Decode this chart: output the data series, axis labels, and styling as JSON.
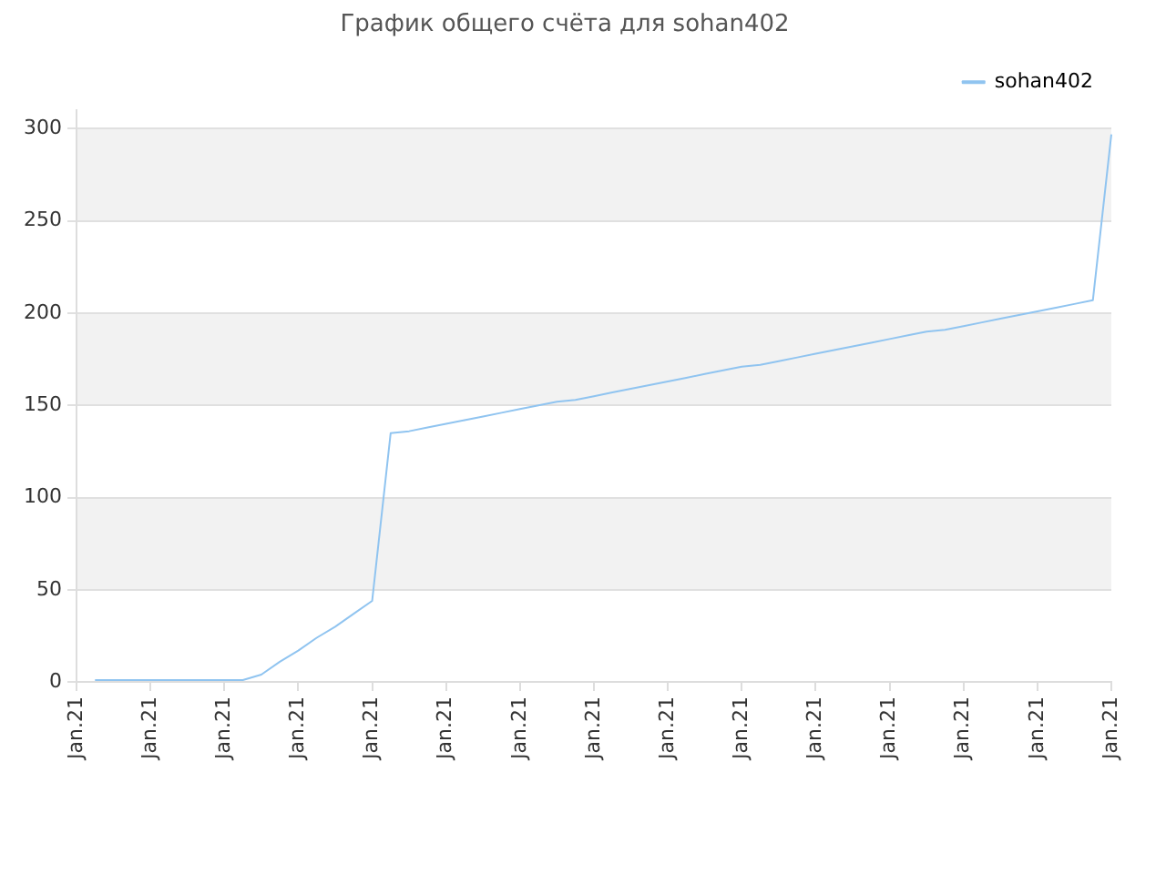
{
  "chart_data": {
    "type": "line",
    "title": "График общего счёта для sohan402",
    "categories": [
      "Jan.21",
      null,
      null,
      null,
      "Jan.21",
      null,
      null,
      null,
      "Jan.21",
      null,
      null,
      null,
      "Jan.21",
      null,
      null,
      null,
      "Jan.21",
      null,
      null,
      null,
      "Jan.21",
      null,
      null,
      null,
      "Jan.21",
      null,
      null,
      null,
      "Jan.21",
      null,
      null,
      null,
      "Jan.21",
      null,
      null,
      null,
      "Jan.21",
      null,
      null,
      null,
      "Jan.21",
      null,
      null,
      null,
      "Jan.21",
      null,
      null,
      null,
      "Jan.21",
      null,
      null,
      null,
      "Jan.21",
      null,
      null,
      null,
      "Jan.21"
    ],
    "series": [
      {
        "name": "sohan402",
        "color": "#90c4f0",
        "values": [
          null,
          1,
          1,
          1,
          1,
          1,
          1,
          1,
          1,
          1,
          4,
          11,
          17,
          24,
          30,
          37,
          44,
          135,
          136,
          138,
          140,
          142,
          144,
          146,
          148,
          150,
          152,
          153,
          155,
          157,
          159,
          161,
          163,
          165,
          167,
          169,
          171,
          172,
          174,
          176,
          178,
          180,
          182,
          184,
          186,
          188,
          190,
          191,
          193,
          195,
          197,
          199,
          201,
          203,
          205,
          207,
          297
        ]
      }
    ],
    "ylim": [
      0,
      310
    ],
    "yticks": [
      0,
      50,
      100,
      150,
      200,
      250,
      300
    ],
    "grid": "y",
    "legend": "top right",
    "marker": "none",
    "line_style": "solid"
  }
}
